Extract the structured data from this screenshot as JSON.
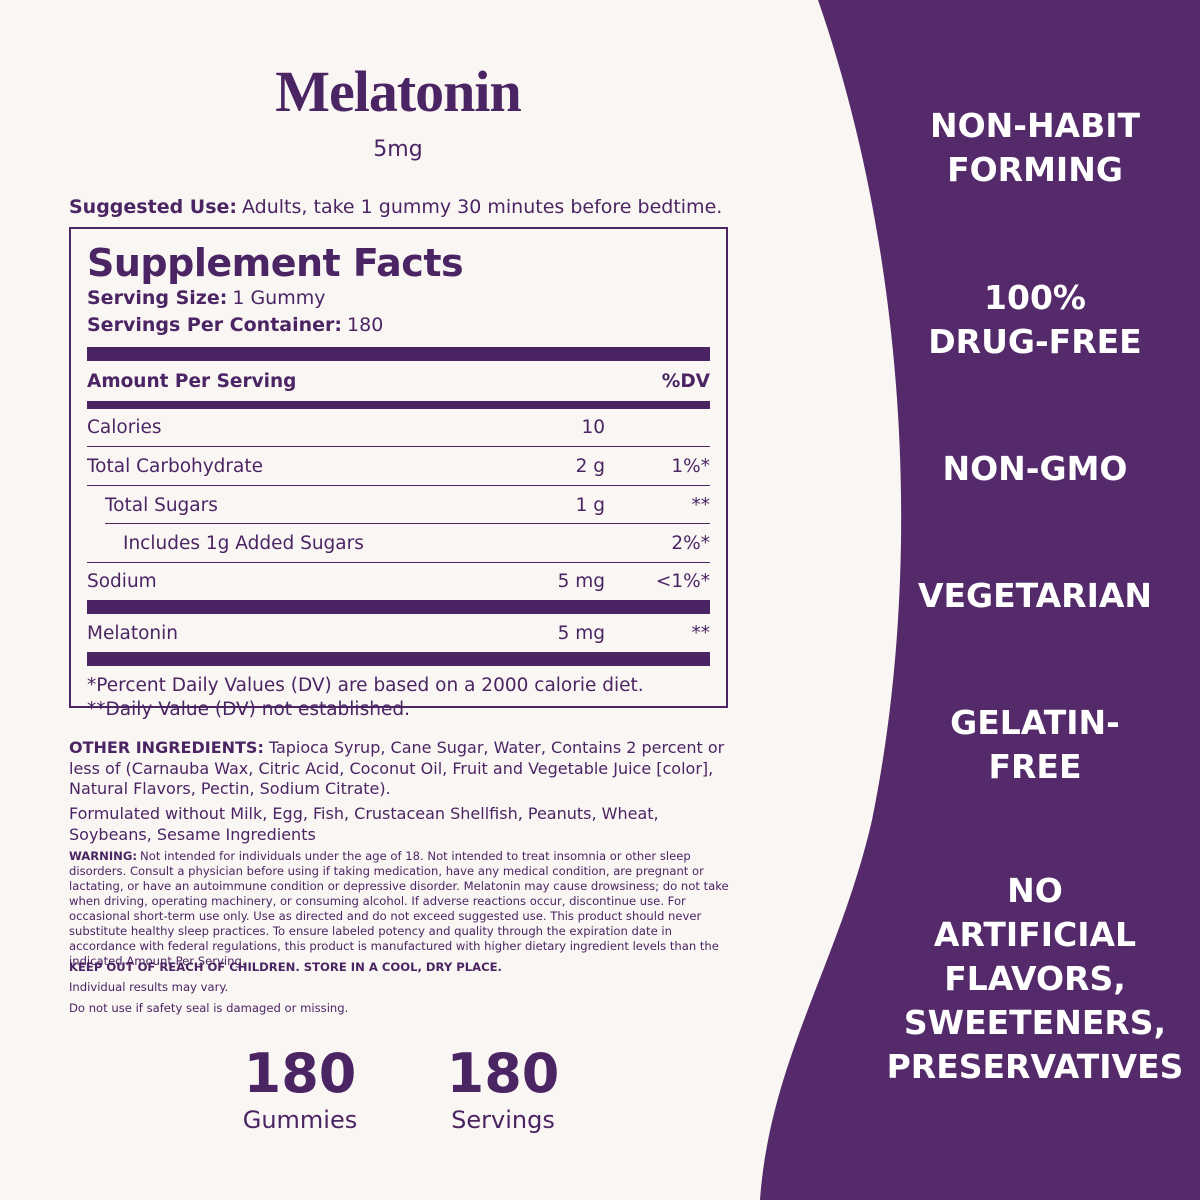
{
  "header": {
    "title": "Melatonin",
    "dose": "5mg"
  },
  "suggested_use": {
    "label": "Suggested Use:",
    "text": "Adults, take 1 gummy 30 minutes before bedtime."
  },
  "facts": {
    "title": "Supplement Facts",
    "serving_size": {
      "label": "Serving Size:",
      "value": "1 Gummy"
    },
    "servings_per_container": {
      "label": "Servings Per Container:",
      "value": "180"
    },
    "column_header": {
      "amount": "Amount Per Serving",
      "dv": "%DV"
    },
    "rows": [
      {
        "name": "Calories",
        "amount": "10"
      },
      {
        "name": "Total Carbohydrate",
        "amount": "2 g",
        "dv": "1%*"
      },
      {
        "name": "Total Sugars",
        "amount": "1 g",
        "dv": "**"
      },
      {
        "name": "Includes 1g Added Sugars",
        "dv": "2%*"
      },
      {
        "name": "Sodium",
        "amount": "5 mg",
        "dv": "<1%*"
      },
      {
        "name": "Melatonin",
        "amount": "5 mg",
        "dv": "**"
      }
    ],
    "footnotes": [
      "*Percent Daily Values (DV) are based on a 2000 calorie diet.",
      "**Daily Value (DV) not established."
    ]
  },
  "other_ingredients": {
    "label": "OTHER INGREDIENTS:",
    "text": "Tapioca Syrup, Cane Sugar, Water, Contains 2 percent or less of (Carnauba Wax, Citric Acid, Coconut Oil, Fruit and Vegetable Juice [color], Natural Flavors, Pectin, Sodium Citrate)."
  },
  "allergen_statement": "Formulated without Milk, Egg, Fish, Crustacean Shellfish, Peanuts, Wheat, Soybeans, Sesame Ingredients",
  "warning": {
    "label": "WARNING:",
    "text": "Not intended for individuals under the age of 18. Not intended to treat insomnia or other sleep disorders. Consult a physician before using if taking medication, have any medical condition, are pregnant or lactating, or have an autoimmune condition or depressive disorder. Melatonin may cause drowsiness; do not take when driving, operating machinery, or consuming alcohol. If adverse reactions occur, discontinue use. For occasional short-term use only. Use as directed and do not exceed suggested use. This product should never substitute healthy sleep practices. To ensure labeled potency and quality through the expiration date in accordance with federal regulations, this product is manufactured with higher dietary ingredient levels than the indicated Amount Per Serving."
  },
  "notes": [
    "KEEP OUT OF REACH OF CHILDREN. STORE IN A COOL, DRY PLACE.",
    "Individual results may vary.",
    "Do not use if safety seal is damaged or missing."
  ],
  "stats": [
    {
      "number": 180,
      "unit": "Gummies"
    },
    {
      "number": 180,
      "unit": "Servings"
    }
  ],
  "claims": [
    {
      "lines": [
        "NON-HABIT",
        "FORMING"
      ]
    },
    {
      "lines": [
        "100%",
        "DRUG-FREE"
      ]
    },
    {
      "lines": [
        "NON-GMO"
      ]
    },
    {
      "lines": [
        "VEGETARIAN"
      ]
    },
    {
      "lines": [
        "GELATIN-",
        "FREE"
      ]
    },
    {
      "lines": [
        "NO",
        "ARTIFICIAL",
        "FLAVORS,",
        "SWEETENERS,",
        "PRESERVATIVES"
      ]
    }
  ]
}
